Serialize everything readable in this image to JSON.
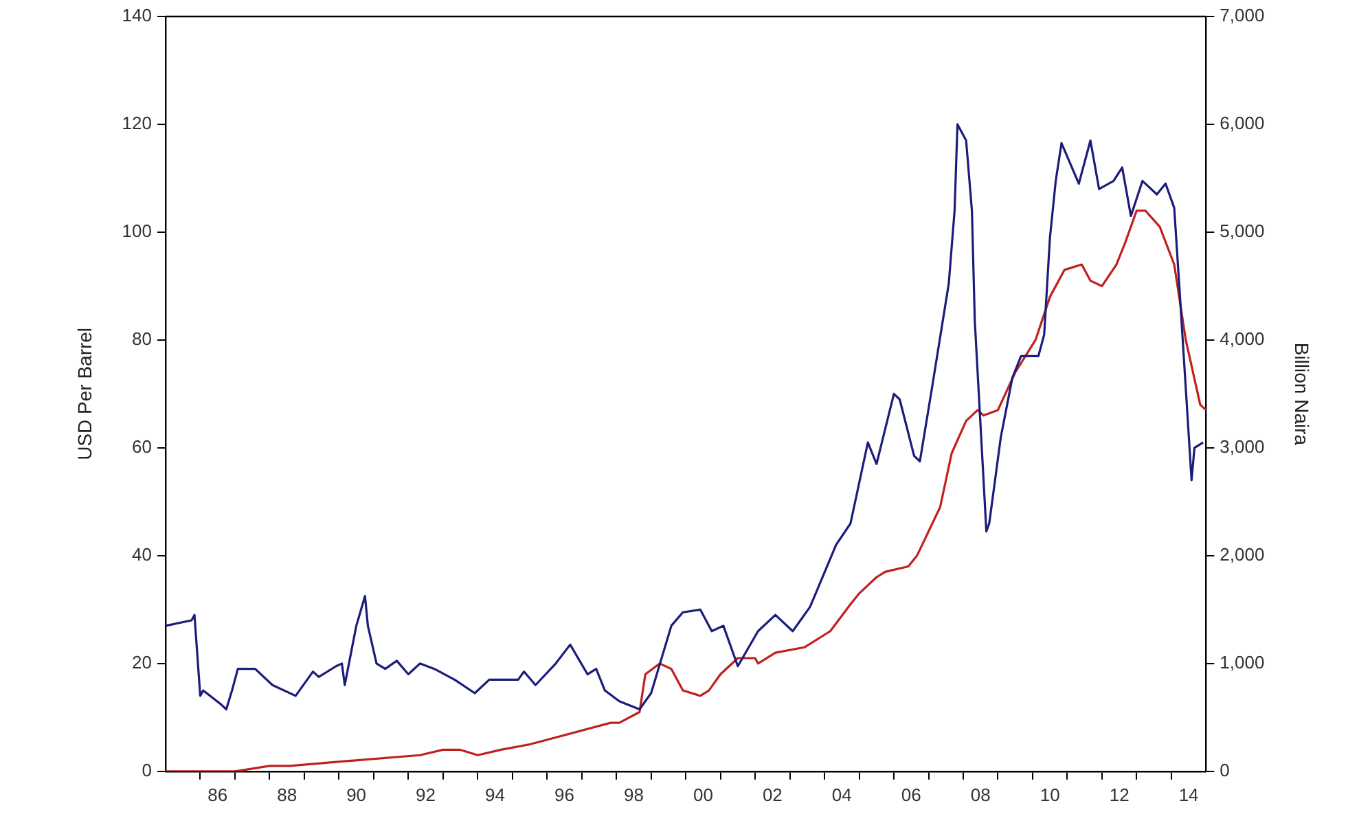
{
  "chart_data": {
    "type": "line",
    "ylabel": "USD Per Barrel",
    "y2label": "Billion Naira",
    "grid": false,
    "legend": false,
    "marker": "none",
    "line_style": "solid",
    "xlim": [
      "1985-01",
      "2015-01"
    ],
    "xticks": [
      {
        "value": "1986",
        "label": null
      },
      {
        "value": "1986-07",
        "label": "86"
      },
      {
        "value": "1987",
        "label": null
      },
      {
        "value": "1988",
        "label": null
      },
      {
        "value": "1988-07",
        "label": "88"
      },
      {
        "value": "1989",
        "label": null
      },
      {
        "value": "1990",
        "label": null
      },
      {
        "value": "1990-07",
        "label": "90"
      },
      {
        "value": "1991",
        "label": null
      },
      {
        "value": "1992",
        "label": null
      },
      {
        "value": "1992-07",
        "label": "92"
      },
      {
        "value": "1993",
        "label": null
      },
      {
        "value": "1994",
        "label": null
      },
      {
        "value": "1994-07",
        "label": "94"
      },
      {
        "value": "1995",
        "label": null
      },
      {
        "value": "1996",
        "label": null
      },
      {
        "value": "1996-07",
        "label": "96"
      },
      {
        "value": "1997",
        "label": null
      },
      {
        "value": "1998",
        "label": null
      },
      {
        "value": "1998-07",
        "label": "98"
      },
      {
        "value": "1999",
        "label": null
      },
      {
        "value": "2000",
        "label": null
      },
      {
        "value": "2000-07",
        "label": "00"
      },
      {
        "value": "2001",
        "label": null
      },
      {
        "value": "2002",
        "label": null
      },
      {
        "value": "2002-07",
        "label": "02"
      },
      {
        "value": "2003",
        "label": null
      },
      {
        "value": "2004",
        "label": null
      },
      {
        "value": "2004-07",
        "label": "04"
      },
      {
        "value": "2005",
        "label": null
      },
      {
        "value": "2006",
        "label": null
      },
      {
        "value": "2006-07",
        "label": "06"
      },
      {
        "value": "2007",
        "label": null
      },
      {
        "value": "2008",
        "label": null
      },
      {
        "value": "2008-07",
        "label": "08"
      },
      {
        "value": "2009",
        "label": null
      },
      {
        "value": "2010",
        "label": null
      },
      {
        "value": "2010-07",
        "label": "10"
      },
      {
        "value": "2011",
        "label": null
      },
      {
        "value": "2012",
        "label": null
      },
      {
        "value": "2012-07",
        "label": "12"
      },
      {
        "value": "2013",
        "label": null
      },
      {
        "value": "2014",
        "label": null
      },
      {
        "value": "2014-07",
        "label": "14"
      }
    ],
    "ylim": [
      0,
      140
    ],
    "yticks": [
      0,
      20,
      40,
      60,
      80,
      100,
      120,
      140
    ],
    "y2lim": [
      0,
      7000
    ],
    "y2ticks": [
      {
        "value": 0,
        "label": "0"
      },
      {
        "value": 1000,
        "label": "1,000"
      },
      {
        "value": 2000,
        "label": "2,000"
      },
      {
        "value": 3000,
        "label": "3,000"
      },
      {
        "value": 4000,
        "label": "4,000"
      },
      {
        "value": 5000,
        "label": "5,000"
      },
      {
        "value": 6000,
        "label": "6,000"
      },
      {
        "value": 7000,
        "label": "7,000"
      }
    ],
    "series": [
      {
        "color": "#1c1c7a",
        "x": [
          "1985-01",
          "1985-10",
          "1985-11",
          "1986-01",
          "1986-02",
          "1986-08",
          "1986-10",
          "1986-12",
          "1987-02",
          "1987-08",
          "1988-02",
          "1988-10",
          "1989-02",
          "1989-04",
          "1989-06",
          "1989-12",
          "1990-02",
          "1990-03",
          "1990-07",
          "1990-10",
          "1990-11",
          "1991-02",
          "1991-05",
          "1991-09",
          "1992-01",
          "1992-05",
          "1992-10",
          "1993-05",
          "1993-12",
          "1994-05",
          "1995-03",
          "1995-05",
          "1995-09",
          "1996-04",
          "1996-09",
          "1997-03",
          "1997-06",
          "1997-09",
          "1998-02",
          "1998-09",
          "1999-01",
          "1999-08",
          "1999-12",
          "2000-06",
          "2000-10",
          "2001-02",
          "2001-07",
          "2002-02",
          "2002-08",
          "2003-02",
          "2003-08",
          "2004-05",
          "2004-10",
          "2005-04",
          "2005-07",
          "2006-01",
          "2006-03",
          "2006-08",
          "2006-10",
          "2007-02",
          "2007-08",
          "2007-10",
          "2007-11",
          "2008-02",
          "2008-04",
          "2008-05",
          "2008-09",
          "2008-10",
          "2009-02",
          "2009-06",
          "2009-09",
          "2010-03",
          "2010-05",
          "2010-07",
          "2010-09",
          "2010-11",
          "2011-05",
          "2011-09",
          "2011-12",
          "2012-05",
          "2012-08",
          "2012-11",
          "2013-03",
          "2013-08",
          "2013-11",
          "2014-02",
          "2014-04",
          "2014-08",
          "2014-09",
          "2014-12"
        ],
        "values": [
          27,
          28,
          29,
          14,
          15,
          12.5,
          11.5,
          15,
          19,
          19,
          16,
          14,
          17,
          18.5,
          17.5,
          19.5,
          20,
          16,
          27,
          32.5,
          27,
          20,
          19,
          20.5,
          18,
          20,
          19,
          17,
          14.5,
          17,
          17,
          18.5,
          16,
          20,
          23.5,
          18,
          19,
          15,
          13,
          11.5,
          14.5,
          27,
          29.5,
          30,
          26,
          27,
          19.5,
          26,
          29,
          26,
          30.5,
          42,
          46,
          61,
          57,
          70,
          69,
          58.5,
          57.5,
          70.5,
          90.5,
          104,
          120,
          117,
          104,
          83.5,
          44.5,
          46,
          62,
          73,
          77,
          77,
          81,
          99,
          109.5,
          116.5,
          109,
          117,
          108,
          109.5,
          112,
          103,
          109.5,
          107,
          109,
          104.5,
          88,
          54,
          60,
          61
        ]
      },
      {
        "color": "#c0201e",
        "axis": "y2",
        "x": [
          "1985-01",
          "1986-01",
          "1987-01",
          "1988-01",
          "1988-08",
          "1990-06",
          "1992-05",
          "1993-01",
          "1993-07",
          "1994-01",
          "1994-09",
          "1995-07",
          "1996-02",
          "1997-11",
          "1998-02",
          "1998-09",
          "1998-11",
          "1999-04",
          "1999-08",
          "1999-12",
          "2000-06",
          "2000-09",
          "2001-01",
          "2001-07",
          "2002-01",
          "2002-02",
          "2002-08",
          "2003-06",
          "2004-03",
          "2004-10",
          "2005-01",
          "2005-07",
          "2005-10",
          "2006-06",
          "2006-09",
          "2007-05",
          "2007-09",
          "2008-02",
          "2008-06",
          "2008-08",
          "2009-01",
          "2009-07",
          "2010-02",
          "2010-07",
          "2010-12",
          "2011-06",
          "2011-09",
          "2012-01",
          "2012-06",
          "2012-09",
          "2013-01",
          "2013-04",
          "2013-09",
          "2014-02",
          "2014-06",
          "2014-11",
          "2015-01"
        ],
        "values": [
          0,
          0,
          0,
          50,
          50,
          100,
          150,
          200,
          200,
          150,
          200,
          250,
          300,
          450,
          450,
          550,
          900,
          1000,
          950,
          750,
          700,
          750,
          900,
          1050,
          1050,
          1000,
          1100,
          1150,
          1300,
          1550,
          1650,
          1800,
          1850,
          1900,
          2000,
          2450,
          2950,
          3250,
          3350,
          3300,
          3350,
          3700,
          4000,
          4400,
          4650,
          4700,
          4550,
          4500,
          4700,
          4900,
          5200,
          5200,
          5050,
          4700,
          4000,
          3400,
          3350
        ]
      }
    ]
  }
}
